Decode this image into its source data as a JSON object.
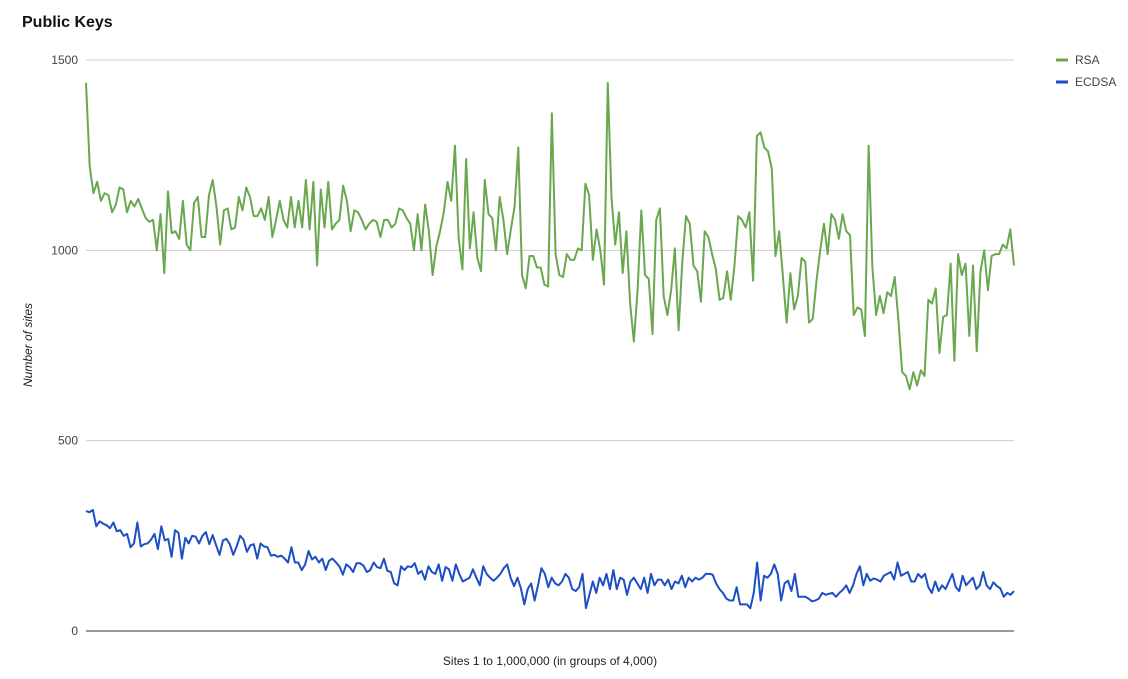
{
  "chart_data": {
    "type": "line",
    "title": "Public Keys",
    "xlabel": "Sites 1 to 1,000,000 (in groups of 4,000)",
    "ylabel": "Number of sites",
    "ylim": [
      0,
      1500
    ],
    "yticks": [
      0,
      500,
      1000,
      1500
    ],
    "grid": true,
    "legend_position": "right",
    "series": [
      {
        "name": "RSA",
        "color": "#6aa84f",
        "values": [
          1440,
          1220,
          1150,
          1180,
          1130,
          1150,
          1145,
          1100,
          1120,
          1165,
          1160,
          1100,
          1130,
          1115,
          1135,
          1110,
          1085,
          1075,
          1080,
          1000,
          1095,
          940,
          1155,
          1045,
          1050,
          1030,
          1130,
          1015,
          1000,
          1125,
          1140,
          1035,
          1035,
          1145,
          1185,
          1115,
          1015,
          1105,
          1110,
          1055,
          1060,
          1140,
          1105,
          1165,
          1140,
          1090,
          1090,
          1110,
          1080,
          1140,
          1035,
          1080,
          1130,
          1080,
          1060,
          1140,
          1060,
          1130,
          1060,
          1185,
          1055,
          1180,
          960,
          1160,
          1060,
          1180,
          1055,
          1070,
          1080,
          1170,
          1130,
          1050,
          1105,
          1100,
          1080,
          1055,
          1070,
          1080,
          1075,
          1035,
          1080,
          1080,
          1060,
          1070,
          1110,
          1105,
          1085,
          1070,
          1000,
          1095,
          1000,
          1120,
          1050,
          935,
          1010,
          1050,
          1100,
          1180,
          1130,
          1275,
          1030,
          950,
          1240,
          1005,
          1100,
          980,
          945,
          1185,
          1095,
          1085,
          1000,
          1140,
          1080,
          990,
          1055,
          1115,
          1270,
          935,
          900,
          985,
          985,
          955,
          955,
          910,
          905,
          1360,
          990,
          935,
          930,
          990,
          975,
          975,
          1005,
          1000,
          1175,
          1145,
          975,
          1055,
          1000,
          910,
          1440,
          1140,
          1015,
          1100,
          940,
          1050,
          860,
          760,
          895,
          1105,
          935,
          925,
          780,
          1080,
          1110,
          880,
          830,
          895,
          1005,
          790,
          970,
          1090,
          1070,
          960,
          945,
          865,
          1050,
          1035,
          990,
          950,
          870,
          875,
          945,
          870,
          960,
          1090,
          1080,
          1060,
          1100,
          920,
          1300,
          1310,
          1270,
          1260,
          1215,
          985,
          1050,
          930,
          810,
          940,
          845,
          880,
          980,
          970,
          810,
          820,
          920,
          1000,
          1070,
          990,
          1095,
          1080,
          1030,
          1095,
          1050,
          1040,
          830,
          850,
          845,
          775,
          1275,
          955,
          830,
          880,
          835,
          890,
          880,
          930,
          815,
          680,
          670,
          635,
          680,
          645,
          685,
          670,
          870,
          860,
          900,
          730,
          825,
          830,
          965,
          710,
          990,
          935,
          965,
          775,
          960,
          735,
          945,
          1000,
          895,
          985,
          990,
          990,
          1015,
          1005,
          1055,
          960
        ]
      },
      {
        "name": "ECDSA",
        "color": "#1c4fc4",
        "values": [
          315,
          312,
          318,
          275,
          288,
          282,
          278,
          270,
          285,
          262,
          265,
          250,
          255,
          220,
          230,
          285,
          222,
          228,
          230,
          240,
          255,
          215,
          275,
          238,
          242,
          195,
          265,
          258,
          190,
          245,
          230,
          250,
          248,
          230,
          250,
          260,
          228,
          252,
          225,
          200,
          238,
          242,
          228,
          200,
          222,
          250,
          240,
          208,
          225,
          228,
          190,
          230,
          222,
          220,
          198,
          200,
          195,
          198,
          190,
          180,
          220,
          180,
          180,
          160,
          175,
          210,
          188,
          195,
          180,
          190,
          160,
          185,
          190,
          180,
          170,
          148,
          175,
          168,
          155,
          178,
          178,
          172,
          155,
          160,
          180,
          168,
          165,
          190,
          158,
          155,
          125,
          120,
          170,
          160,
          170,
          168,
          178,
          150,
          158,
          135,
          170,
          155,
          150,
          175,
          132,
          168,
          162,
          132,
          175,
          150,
          130,
          135,
          140,
          162,
          140,
          120,
          170,
          150,
          140,
          132,
          140,
          150,
          165,
          175,
          140,
          118,
          140,
          112,
          70,
          110,
          125,
          80,
          120,
          165,
          150,
          115,
          140,
          125,
          120,
          130,
          150,
          140,
          110,
          105,
          115,
          150,
          60,
          95,
          130,
          100,
          140,
          120,
          150,
          110,
          160,
          110,
          140,
          135,
          95,
          130,
          140,
          125,
          110,
          140,
          100,
          150,
          120,
          135,
          135,
          120,
          135,
          110,
          130,
          125,
          145,
          115,
          140,
          130,
          140,
          135,
          140,
          150,
          150,
          148,
          125,
          110,
          100,
          85,
          80,
          80,
          115,
          70,
          70,
          70,
          60,
          100,
          180,
          80,
          145,
          140,
          150,
          175,
          150,
          80,
          125,
          132,
          105,
          150,
          90,
          90,
          90,
          85,
          78,
          80,
          85,
          100,
          95,
          98,
          100,
          90,
          100,
          108,
          120,
          100,
          120,
          150,
          170,
          120,
          150,
          132,
          138,
          135,
          130,
          145,
          150,
          155,
          135,
          180,
          145,
          150,
          155,
          130,
          130,
          150,
          140,
          150,
          115,
          100,
          130,
          105,
          120,
          110,
          130,
          150,
          115,
          105,
          145,
          120,
          130,
          140,
          110,
          120,
          155,
          120,
          110,
          128,
          118,
          112,
          90,
          100,
          95,
          105
        ]
      }
    ]
  }
}
